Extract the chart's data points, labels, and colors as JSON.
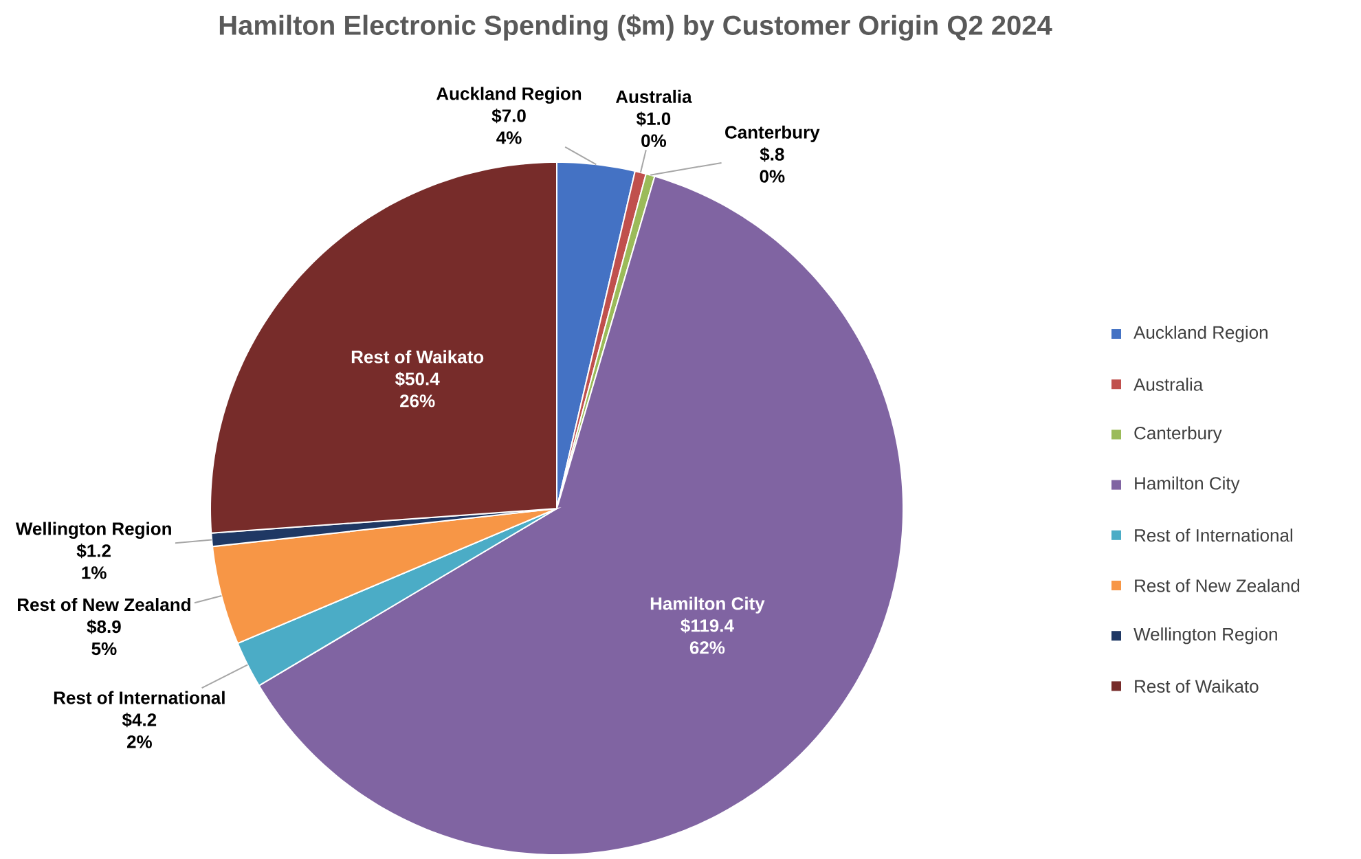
{
  "chart_data": {
    "type": "pie",
    "title": "Hamilton Electronic Spending ($m) by Customer Origin Q2 2024",
    "categories": [
      "Auckland Region",
      "Australia",
      "Canterbury",
      "Hamilton City",
      "Rest of International",
      "Rest of New Zealand",
      "Wellington Region",
      "Rest of Waikato"
    ],
    "values": [
      7.0,
      1.0,
      0.8,
      119.4,
      4.2,
      8.9,
      1.2,
      50.4
    ],
    "colors": [
      "#4472c4",
      "#c0504d",
      "#9bbb59",
      "#8064a2",
      "#4bacc6",
      "#f79646",
      "#1f3864",
      "#772c2a"
    ],
    "value_labels": [
      "$7.0",
      "$1.0",
      "$.8",
      "$119.4",
      "$4.2",
      "$8.9",
      "$1.2",
      "$50.4"
    ],
    "annotations": [
      "4%",
      "0%",
      "0%",
      "62%",
      "2%",
      "5%",
      "1%",
      "26%"
    ],
    "legend": "right"
  }
}
